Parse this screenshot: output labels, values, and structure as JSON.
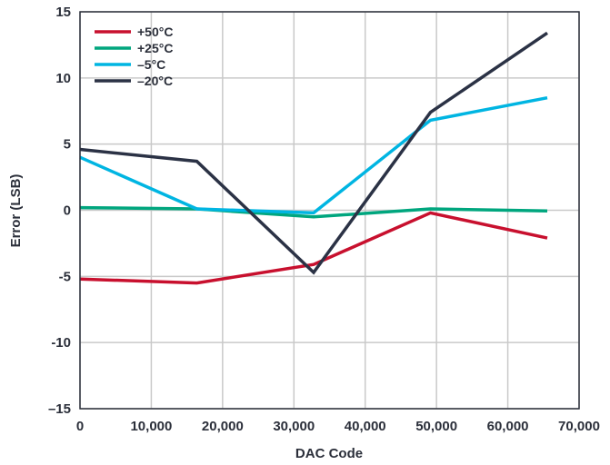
{
  "chart_data": {
    "type": "line",
    "xlabel": "DAC Code",
    "ylabel": "Error (LSB)",
    "xlim": [
      0,
      70000
    ],
    "ylim": [
      -15,
      15
    ],
    "x_ticks": [
      0,
      10000,
      20000,
      30000,
      40000,
      50000,
      60000,
      70000
    ],
    "x_tick_labels": [
      "0",
      "10,000",
      "20,000",
      "30,000",
      "40,000",
      "50,000",
      "60,000",
      "70,000"
    ],
    "y_ticks": [
      -15,
      -10,
      -5,
      0,
      5,
      10,
      15
    ],
    "y_tick_labels": [
      "–15",
      "-10",
      "-5",
      "0",
      "5",
      "10",
      "15"
    ],
    "grid": true,
    "legend_position": "top-left",
    "series": [
      {
        "name": "+50°C",
        "color": "#c8102e",
        "x": [
          0,
          16384,
          32768,
          49152,
          65535
        ],
        "y": [
          -5.2,
          -5.5,
          -4.1,
          -0.2,
          -2.1
        ]
      },
      {
        "name": "+25°C",
        "color": "#00a67e",
        "x": [
          0,
          16384,
          32768,
          49152,
          65535
        ],
        "y": [
          0.2,
          0.1,
          -0.5,
          0.1,
          -0.05
        ]
      },
      {
        "name": "–5°C",
        "color": "#00b5e2",
        "x": [
          0,
          16384,
          32768,
          49152,
          65535
        ],
        "y": [
          4.0,
          0.1,
          -0.2,
          6.8,
          8.5
        ]
      },
      {
        "name": "–20°C",
        "color": "#2b3245",
        "x": [
          0,
          16384,
          32768,
          49152,
          65535
        ],
        "y": [
          4.6,
          3.7,
          -4.7,
          7.4,
          13.4
        ]
      }
    ]
  }
}
